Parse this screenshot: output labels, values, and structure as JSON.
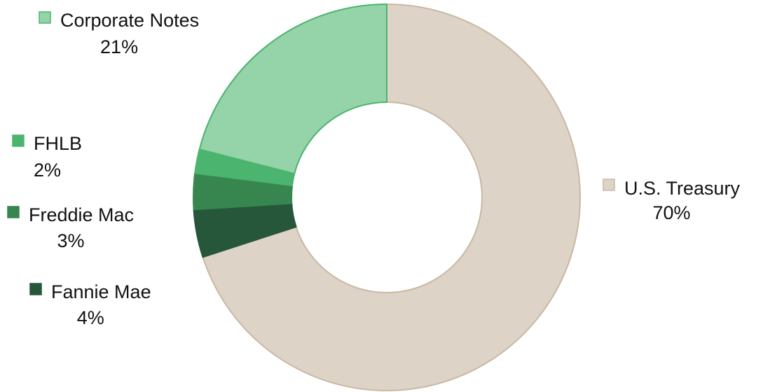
{
  "chart_data": {
    "type": "pie",
    "variant": "donut",
    "title": "",
    "series": [
      {
        "slices": [
          {
            "label": "U.S. Treasury",
            "value": 70,
            "display": "70%",
            "color": "#DDD3C6",
            "stroke": "#C9B9A4",
            "legend_side": "right"
          },
          {
            "label": "Fannie Mae",
            "value": 4,
            "display": "4%",
            "color": "#27573A",
            "stroke": "#27573A",
            "legend_side": "left"
          },
          {
            "label": "Freddie Mac",
            "value": 3,
            "display": "3%",
            "color": "#37864F",
            "stroke": "#37864F",
            "legend_side": "left"
          },
          {
            "label": "FHLB",
            "value": 2,
            "display": "2%",
            "color": "#4BB46E",
            "stroke": "#4BB46E",
            "legend_side": "left"
          },
          {
            "label": "Corporate Notes",
            "value": 21,
            "display": "21%",
            "color": "#95D3A9",
            "stroke": "#4BB46E",
            "legend_side": "left"
          }
        ]
      }
    ],
    "start_angle_deg": 0,
    "direction": "clockwise",
    "legend": "labels beside slices"
  }
}
